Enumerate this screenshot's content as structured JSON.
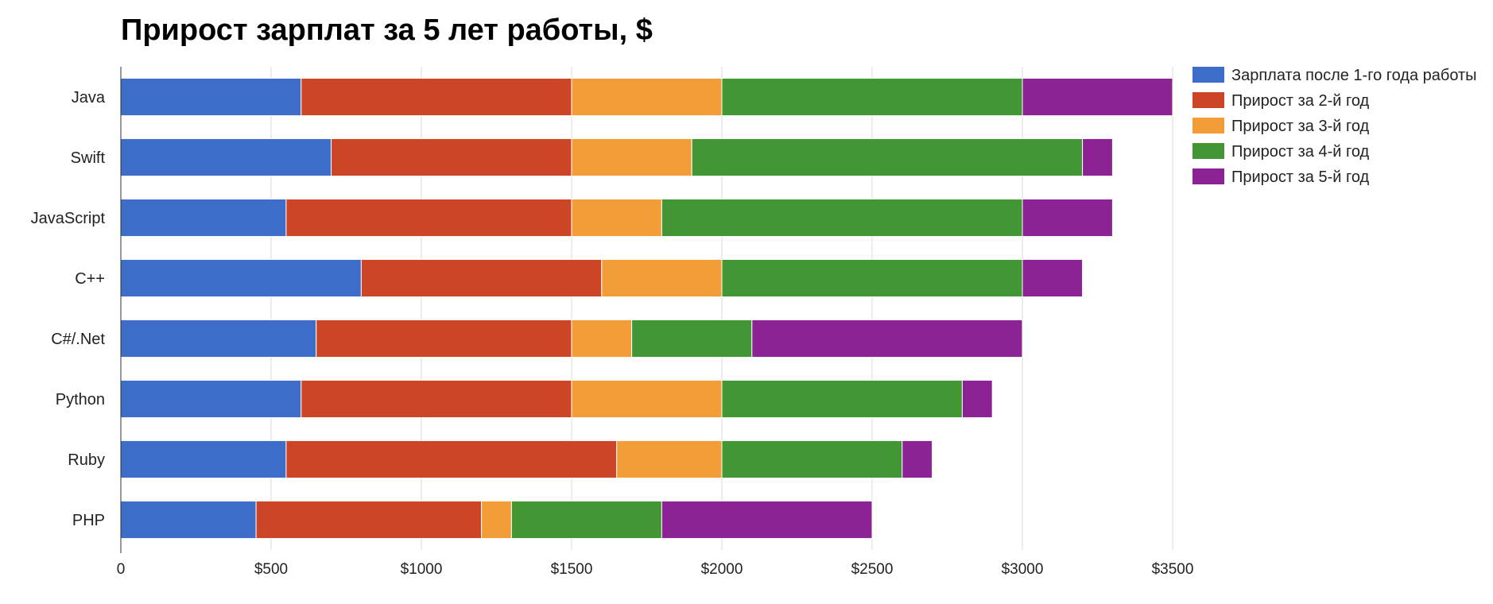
{
  "chart_data": {
    "type": "bar",
    "orientation": "horizontal",
    "stacked": true,
    "title": "Прирост зарплат за 5 лет работы, $",
    "xlabel": "",
    "ylabel": "",
    "categories": [
      "Java",
      "Swift",
      "JavaScript",
      "C++",
      "C#/.Net",
      "Python",
      "Ruby",
      "PHP"
    ],
    "series": [
      {
        "name": "Зарплата после 1-го года работы",
        "color": "#3d6cc9",
        "values": [
          600,
          700,
          550,
          800,
          650,
          600,
          550,
          450
        ]
      },
      {
        "name": "Прирост за 2-й год",
        "color": "#cc4527",
        "values": [
          900,
          800,
          950,
          800,
          850,
          900,
          1100,
          750
        ]
      },
      {
        "name": "Прирост за 3-й год",
        "color": "#f29d37",
        "values": [
          500,
          400,
          300,
          400,
          200,
          500,
          350,
          100
        ]
      },
      {
        "name": "Прирост за 4-й год",
        "color": "#429633",
        "values": [
          1000,
          1300,
          1200,
          1000,
          400,
          800,
          600,
          500
        ]
      },
      {
        "name": "Прирост за 5-й год",
        "color": "#8b2394",
        "values": [
          500,
          100,
          300,
          200,
          900,
          100,
          100,
          700
        ]
      }
    ],
    "xlim": [
      0,
      3500
    ],
    "ticks": [
      {
        "value": 0,
        "label": "0"
      },
      {
        "value": 500,
        "label": "$500"
      },
      {
        "value": 1000,
        "label": "$1000"
      },
      {
        "value": 1500,
        "label": "$1500"
      },
      {
        "value": 2000,
        "label": "$2000"
      },
      {
        "value": 2500,
        "label": "$2500"
      },
      {
        "value": 3000,
        "label": "$3000"
      },
      {
        "value": 3500,
        "label": "$3500"
      }
    ],
    "grid": true,
    "legend_position": "right"
  }
}
